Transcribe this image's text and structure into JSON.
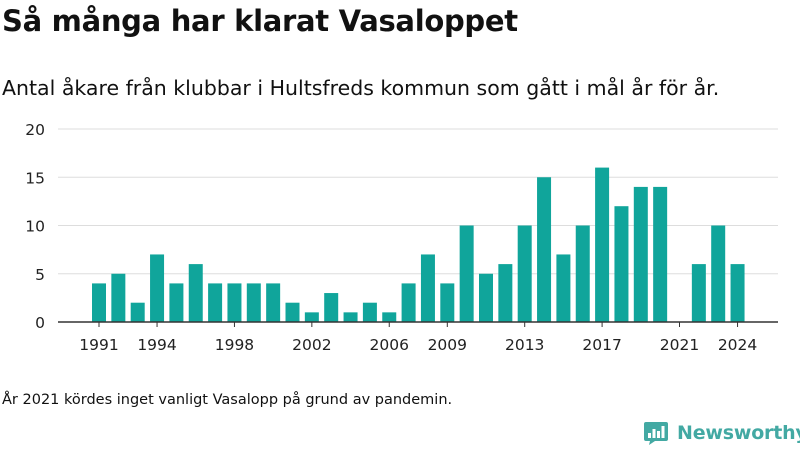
{
  "title": "Så många har klarat Vasaloppet",
  "subtitle": "Antal åkare från klubbar i Hultsfreds kommun som gått i mål år för år.",
  "footnote": "År 2021 kördes inget vanligt Vasalopp på grund av pandemin.",
  "brand": {
    "name": "Newsworthy",
    "color": "#43a9a3"
  },
  "colors": {
    "bar": "#10a59b",
    "grid": "#dddddd",
    "axis": "#333333"
  },
  "chart_data": {
    "type": "bar",
    "categories": [
      1991,
      1992,
      1993,
      1994,
      1995,
      1996,
      1997,
      1998,
      1999,
      2000,
      2001,
      2002,
      2003,
      2004,
      2005,
      2006,
      2007,
      2008,
      2009,
      2010,
      2011,
      2012,
      2013,
      2014,
      2015,
      2016,
      2017,
      2018,
      2019,
      2020,
      2021,
      2022,
      2023,
      2024
    ],
    "values": [
      4,
      5,
      2,
      7,
      4,
      6,
      4,
      4,
      4,
      4,
      2,
      1,
      3,
      1,
      2,
      1,
      4,
      7,
      4,
      10,
      5,
      6,
      10,
      15,
      7,
      10,
      16,
      12,
      14,
      14,
      0,
      6,
      10,
      6
    ],
    "x_tick_labels": [
      "1991",
      "1994",
      "1998",
      "2002",
      "2006",
      "2009",
      "2013",
      "2017",
      "2021",
      "2024"
    ],
    "y_ticks": [
      0,
      5,
      10,
      15,
      20
    ],
    "ylim": [
      0,
      20
    ],
    "grid": true,
    "xlabel": "",
    "ylabel": ""
  }
}
